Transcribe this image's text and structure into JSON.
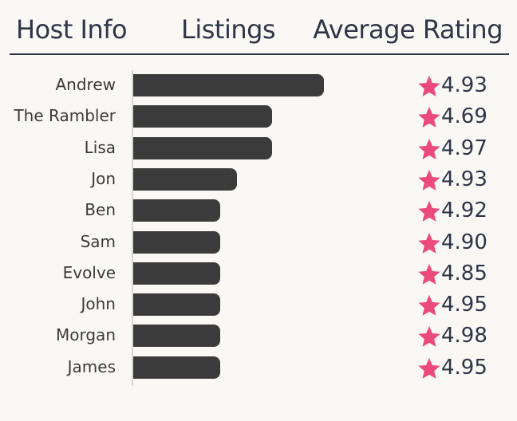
{
  "header": {
    "host_label": "Host Info",
    "listings_label": "Listings",
    "rating_label": "Average Rating"
  },
  "colors": {
    "bar": "#3b3b3b",
    "star": "#ea4b7c",
    "text": "#2f3547",
    "background": "#faf8f5"
  },
  "chart_data": {
    "type": "bar",
    "orientation": "horizontal",
    "title": "",
    "xlabel": "Listings",
    "ylabel": "Host Info",
    "categories": [
      "Andrew",
      "The Rambler",
      "Lisa",
      "Jon",
      "Ben",
      "Sam",
      "Evolve",
      "John",
      "Morgan",
      "James"
    ],
    "values": [
      11,
      8,
      8,
      6,
      5,
      5,
      5,
      5,
      5,
      5
    ],
    "xlim": [
      0,
      11
    ],
    "grid": false,
    "ratings": [
      "4.93",
      "4.69",
      "4.97",
      "4.93",
      "4.92",
      "4.90",
      "4.85",
      "4.95",
      "4.98",
      "4.95"
    ],
    "rating_icon": "star-icon"
  }
}
